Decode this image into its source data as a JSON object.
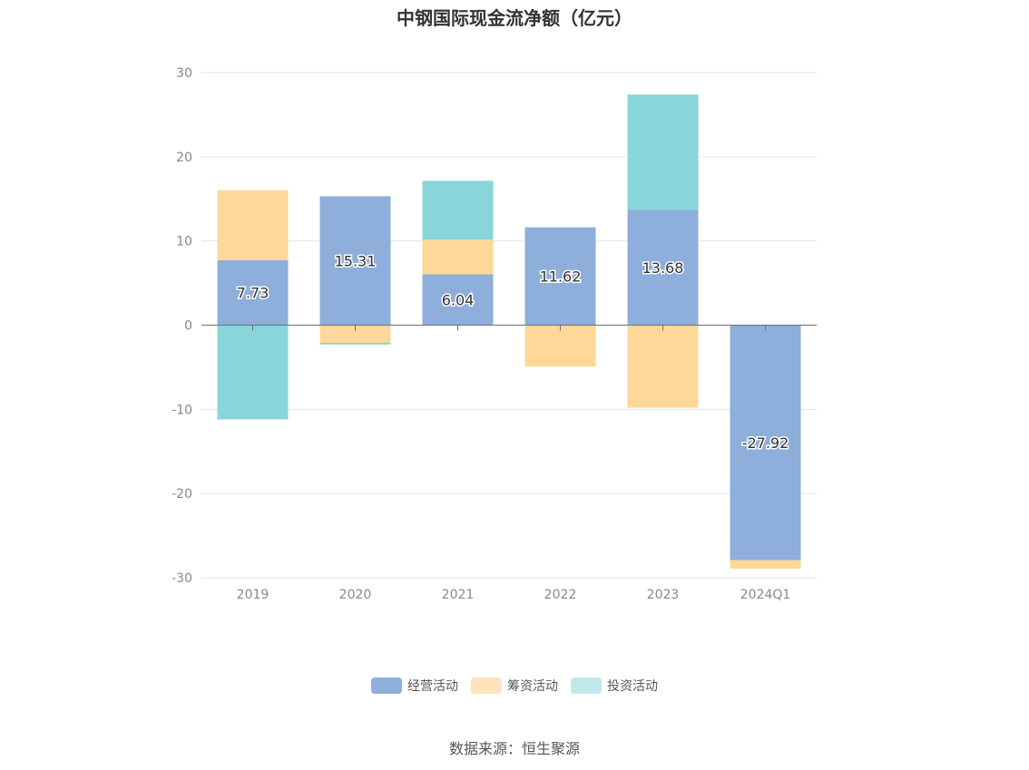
{
  "source_note": "数据来源：恒生聚源",
  "chart_data": {
    "type": "bar",
    "stacked": true,
    "title": "中钢国际现金流净额（亿元）",
    "categories": [
      "2019",
      "2020",
      "2021",
      "2022",
      "2023",
      "2024Q1"
    ],
    "ylim": [
      -30,
      30
    ],
    "yticks": [
      30,
      20,
      10,
      0,
      -10,
      -20,
      -30
    ],
    "grid": true,
    "legend_position": "bottom",
    "series": [
      {
        "name": "经营活动",
        "color": "#8eaedb",
        "legend_color": "#8eaedb",
        "values": [
          7.73,
          15.31,
          6.04,
          11.62,
          13.68,
          -27.92
        ],
        "labels": [
          "7.73",
          "15.31",
          "6.04",
          "11.62",
          "13.68",
          "-27.92"
        ]
      },
      {
        "name": "筹资活动",
        "color": "#fdd899",
        "legend_color": "#fde3bb",
        "values": [
          8.3,
          -2.1,
          4.1,
          -4.9,
          -9.8,
          -1.0
        ]
      },
      {
        "name": "投资活动",
        "color": "#88d5da",
        "legend_color": "#c0e8ec",
        "values": [
          -11.2,
          -0.2,
          7.0,
          0.0,
          13.7,
          0.0
        ]
      }
    ]
  }
}
